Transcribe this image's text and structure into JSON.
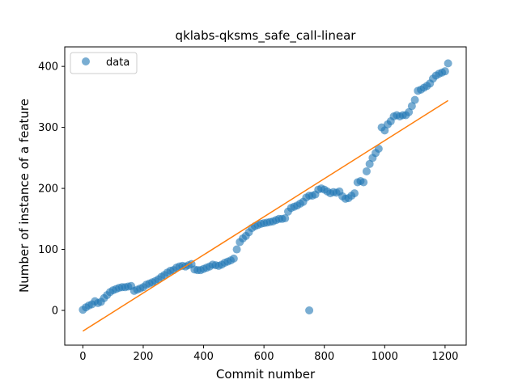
{
  "chart_data": {
    "type": "scatter",
    "title": "qklabs-qksms_safe_call-linear",
    "xlabel": "Commit number",
    "ylabel": "Number of instance of a feature",
    "xlim": [
      -60,
      1270
    ],
    "ylim": [
      -57,
      432
    ],
    "xticks": [
      0,
      200,
      400,
      600,
      800,
      1000,
      1200
    ],
    "yticks": [
      0,
      100,
      200,
      300,
      400
    ],
    "legend": {
      "position": "top-left",
      "entries": [
        "data"
      ]
    },
    "colors": {
      "data": "#1f77b4",
      "fit": "#ff7f0e"
    },
    "series": [
      {
        "name": "data",
        "kind": "scatter",
        "x": [
          0,
          10,
          20,
          30,
          40,
          50,
          60,
          70,
          80,
          90,
          100,
          110,
          120,
          130,
          140,
          150,
          160,
          170,
          180,
          190,
          200,
          210,
          220,
          230,
          240,
          250,
          260,
          270,
          280,
          290,
          300,
          310,
          320,
          330,
          340,
          350,
          360,
          370,
          380,
          390,
          400,
          410,
          420,
          430,
          440,
          450,
          460,
          470,
          480,
          490,
          500,
          510,
          520,
          530,
          540,
          550,
          560,
          570,
          580,
          590,
          600,
          610,
          620,
          630,
          640,
          650,
          660,
          670,
          680,
          690,
          700,
          710,
          720,
          730,
          740,
          750,
          760,
          770,
          780,
          790,
          800,
          810,
          820,
          830,
          840,
          850,
          860,
          870,
          880,
          890,
          900,
          910,
          920,
          930,
          940,
          950,
          960,
          970,
          980,
          990,
          1000,
          1010,
          1020,
          1030,
          1040,
          1050,
          1060,
          1070,
          1080,
          1090,
          1100,
          1110,
          1120,
          1130,
          1140,
          1150,
          1160,
          1170,
          1180,
          1190,
          1200,
          1210,
          750
        ],
        "y": [
          1,
          5,
          8,
          10,
          15,
          12,
          14,
          20,
          25,
          30,
          33,
          35,
          37,
          38,
          38,
          39,
          40,
          32,
          34,
          36,
          38,
          42,
          44,
          46,
          48,
          51,
          55,
          58,
          62,
          65,
          66,
          70,
          72,
          73,
          72,
          74,
          76,
          67,
          66,
          66,
          68,
          70,
          72,
          75,
          74,
          73,
          75,
          78,
          80,
          82,
          85,
          100,
          112,
          118,
          122,
          128,
          135,
          138,
          140,
          142,
          143,
          144,
          145,
          146,
          148,
          150,
          150,
          151,
          162,
          168,
          170,
          172,
          175,
          178,
          185,
          188,
          188,
          190,
          198,
          200,
          198,
          195,
          192,
          194,
          193,
          195,
          187,
          183,
          184,
          188,
          192,
          210,
          212,
          210,
          228,
          240,
          250,
          258,
          265,
          300,
          295,
          305,
          310,
          318,
          320,
          318,
          320,
          320,
          325,
          335,
          345,
          360,
          362,
          365,
          368,
          372,
          380,
          385,
          388,
          390,
          392,
          405,
          0
        ]
      },
      {
        "name": "fit",
        "kind": "line",
        "x": [
          0,
          1210
        ],
        "y": [
          -34,
          344
        ]
      }
    ]
  }
}
